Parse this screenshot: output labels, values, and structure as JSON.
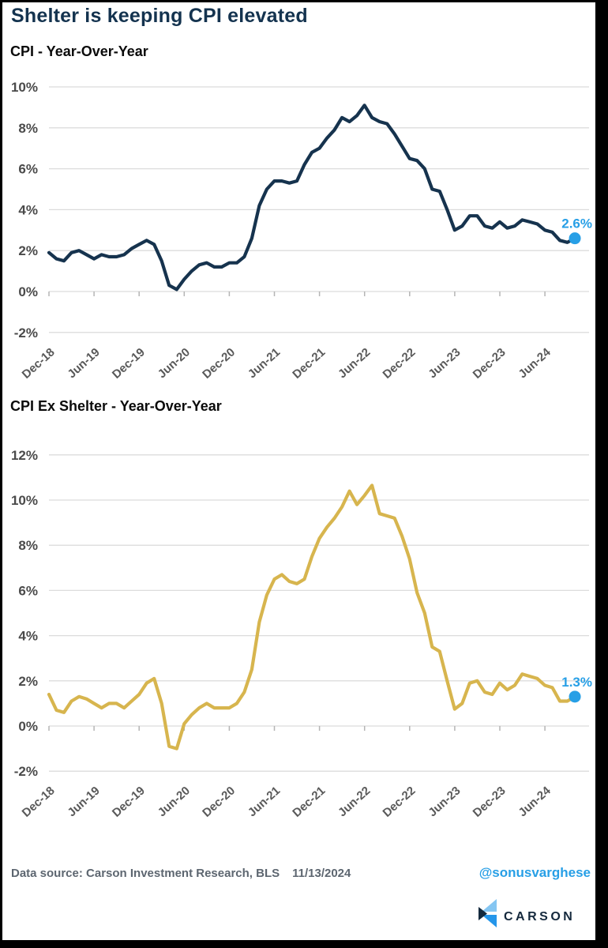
{
  "header": {
    "title": "Shelter is keeping CPI elevated"
  },
  "colors": {
    "navy_line": "#16334e",
    "gold_line": "#d7b54e",
    "accent_blue": "#279fe6",
    "grid": "#dcdcdc",
    "tick": "#b5b5b5"
  },
  "chart_data": [
    {
      "type": "line",
      "title": "CPI - Year-Over-Year",
      "x_tick_labels": [
        "Dec-18",
        "Jun-19",
        "Dec-19",
        "Jun-20",
        "Dec-20",
        "Jun-21",
        "Dec-21",
        "Jun-22",
        "Dec-22",
        "Jun-23",
        "Dec-23",
        "Jun-24"
      ],
      "y_tick_labels": [
        10,
        8,
        6,
        4,
        2,
        0,
        -2
      ],
      "ylim": [
        -2,
        10
      ],
      "grid": "on",
      "legend": "none",
      "line_color_key": "navy_line",
      "end_label": "2.6%",
      "values": [
        1.9,
        1.6,
        1.5,
        1.9,
        2.0,
        1.8,
        1.6,
        1.8,
        1.7,
        1.7,
        1.8,
        2.1,
        2.3,
        2.5,
        2.3,
        1.5,
        0.3,
        0.1,
        0.6,
        1.0,
        1.3,
        1.4,
        1.2,
        1.2,
        1.4,
        1.4,
        1.7,
        2.6,
        4.2,
        5.0,
        5.4,
        5.4,
        5.3,
        5.4,
        6.2,
        6.8,
        7.0,
        7.5,
        7.9,
        8.5,
        8.3,
        8.6,
        9.1,
        8.5,
        8.3,
        8.2,
        7.7,
        7.1,
        6.5,
        6.4,
        6.0,
        5.0,
        4.9,
        4.0,
        3.0,
        3.2,
        3.7,
        3.7,
        3.2,
        3.1,
        3.4,
        3.1,
        3.2,
        3.5,
        3.4,
        3.3,
        3.0,
        2.9,
        2.5,
        2.4,
        2.6
      ]
    },
    {
      "type": "line",
      "title": "CPI Ex Shelter - Year-Over-Year",
      "x_tick_labels": [
        "Dec-18",
        "Jun-19",
        "Dec-19",
        "Jun-20",
        "Dec-20",
        "Jun-21",
        "Dec-21",
        "Jun-22",
        "Dec-22",
        "Jun-23",
        "Dec-23",
        "Jun-24"
      ],
      "y_tick_labels": [
        12,
        10,
        8,
        6,
        4,
        2,
        0,
        -2
      ],
      "ylim": [
        -2,
        12
      ],
      "grid": "on",
      "legend": "none",
      "line_color_key": "gold_line",
      "end_label": "1.3%",
      "values": [
        1.4,
        0.7,
        0.6,
        1.1,
        1.3,
        1.2,
        1.0,
        0.8,
        1.0,
        1.0,
        0.8,
        1.1,
        1.4,
        1.9,
        2.1,
        1.0,
        -0.9,
        -1.0,
        0.1,
        0.5,
        0.8,
        1.0,
        0.8,
        0.8,
        0.8,
        1.0,
        1.5,
        2.5,
        4.6,
        5.8,
        6.5,
        6.7,
        6.4,
        6.3,
        6.5,
        7.5,
        8.3,
        8.8,
        9.2,
        9.7,
        10.4,
        9.8,
        10.2,
        10.65,
        9.4,
        9.3,
        9.2,
        8.4,
        7.4,
        5.9,
        5.0,
        3.5,
        3.3,
        2.0,
        0.75,
        1.0,
        1.9,
        2.0,
        1.5,
        1.4,
        1.9,
        1.6,
        1.8,
        2.3,
        2.2,
        2.1,
        1.8,
        1.7,
        1.1,
        1.1,
        1.3
      ]
    }
  ],
  "footer": {
    "source_text": "Data source: Carson Investment Research, BLS",
    "date": "11/13/2024",
    "handle": "@sonusvarghese",
    "brand": "CARSON"
  }
}
